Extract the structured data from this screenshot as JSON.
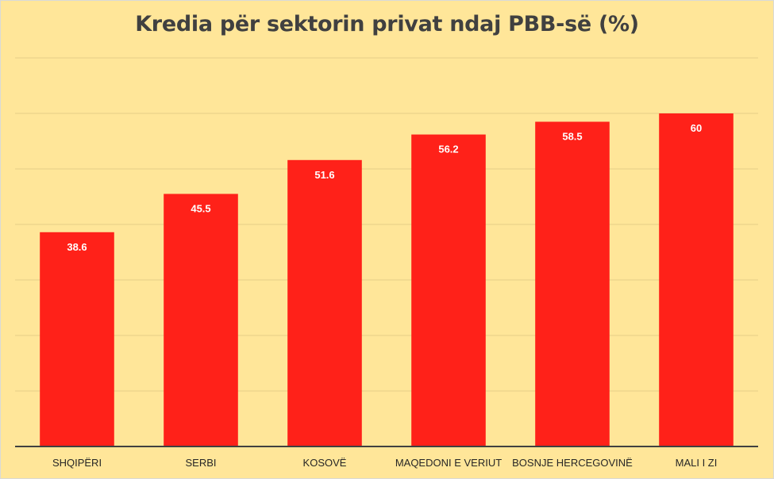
{
  "chart_data": {
    "type": "bar",
    "title": "Kredia për sektorin privat ndaj PBB-së (%)",
    "categories": [
      "SHQIPËRI",
      "SERBI",
      "KOSOVË",
      "MAQEDONI E VERIUT",
      "BOSNJE HERCEGOVINË",
      "MALI I ZI"
    ],
    "values": [
      38.6,
      45.5,
      51.6,
      56.2,
      58.5,
      60
    ],
    "data_labels": [
      "38.6",
      "45.5",
      "51.6",
      "56.2",
      "58.5",
      "60"
    ],
    "ylim": [
      0,
      70
    ],
    "grid": true,
    "legend": false,
    "colors": {
      "bar": "#ff2119",
      "background": "#ffe699",
      "grid": "#e6cf88",
      "axis": "#404040"
    }
  }
}
